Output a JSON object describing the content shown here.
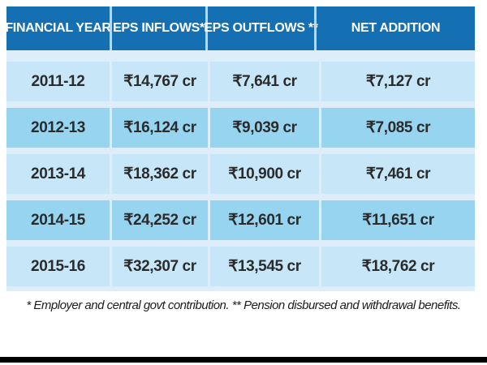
{
  "chart_data": {
    "type": "table",
    "columns": [
      "FINANCIAL YEAR",
      "EPS INFLOWS*",
      "EPS OUTFLOWS **",
      "NET ADDITION"
    ],
    "rows": [
      {
        "cells": [
          "2011-12",
          "₹14,767 cr",
          "₹7,641 cr",
          "₹7,127 cr"
        ]
      },
      {
        "cells": [
          "2012-13",
          "₹16,124 cr",
          "₹9,039 cr",
          "₹7,085 cr"
        ]
      },
      {
        "cells": [
          "2013-14",
          "₹18,362 cr",
          "₹10,900 cr",
          "₹7,461 cr"
        ]
      },
      {
        "cells": [
          "2014-15",
          "₹24,252 cr",
          "₹12,601 cr",
          "₹11,651 cr"
        ]
      },
      {
        "cells": [
          "2015-16",
          "₹32,307 cr",
          "₹13,545 cr",
          "₹18,762 cr"
        ]
      }
    ],
    "footnote": "* Employer and central govt contribution. ** Pension disbursed and withdrawal benefits.",
    "units": "₹ crore",
    "layout": "grid off, alternating row shading, centered values"
  },
  "colors": {
    "header_blue": "#1470b2",
    "header_sep": "#b9d8ec",
    "row_light": "#c7e7f8",
    "row_dark": "#96d4f0",
    "gap_blue": "#ddeefa",
    "bottom_bar": "#000000"
  }
}
